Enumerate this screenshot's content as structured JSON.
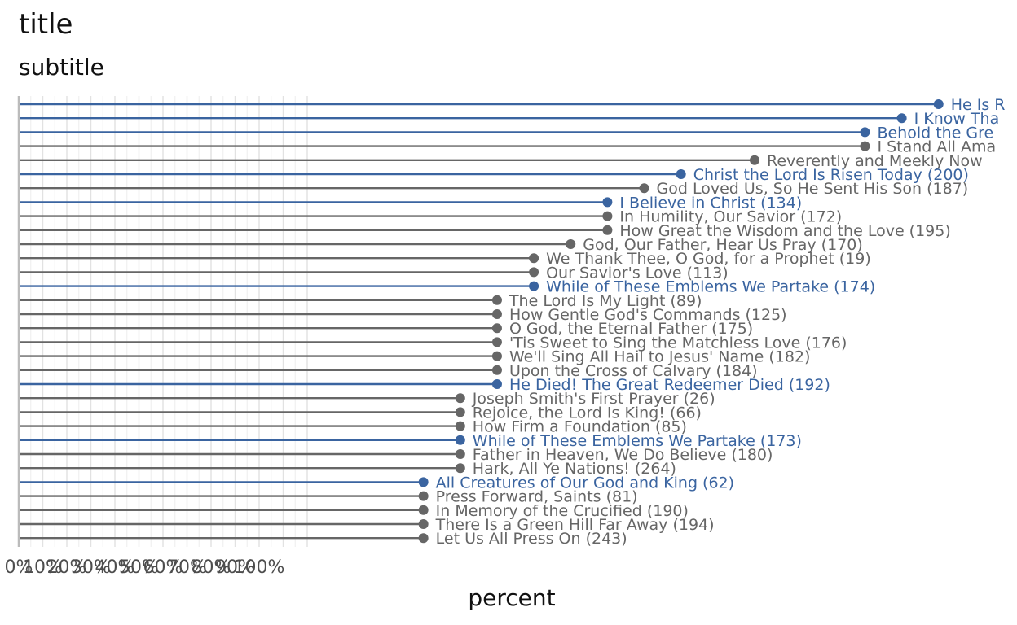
{
  "title": "title",
  "subtitle": "subtitle",
  "chart_data": {
    "type": "lollipop",
    "xlabel": "percent",
    "ylabel": "",
    "xlim": [
      0,
      100
    ],
    "x_tick_labels": [
      "0%",
      "10%",
      "20%",
      "30%",
      "40%",
      "50%",
      "60%",
      "70%",
      "80%",
      "90%",
      "100%"
    ],
    "colors": {
      "highlight": "#3a64a0",
      "default": "#666666"
    },
    "rows": [
      {
        "label": "He Is R",
        "value": 75,
        "highlight": true
      },
      {
        "label": "I Know Tha",
        "value": 72,
        "highlight": true
      },
      {
        "label": "Behold the Gre",
        "value": 69,
        "highlight": true
      },
      {
        "label": "I Stand All Ama",
        "value": 69,
        "highlight": false
      },
      {
        "label": "Reverently and Meekly Now",
        "value": 60,
        "highlight": false
      },
      {
        "label": "Christ the Lord Is Risen Today (200)",
        "value": 54,
        "highlight": true
      },
      {
        "label": "God Loved Us, So He Sent His Son (187)",
        "value": 51,
        "highlight": false
      },
      {
        "label": "I Believe in Christ (134)",
        "value": 48,
        "highlight": true
      },
      {
        "label": "In Humility, Our Savior (172)",
        "value": 48,
        "highlight": false
      },
      {
        "label": "How Great the Wisdom and the Love (195)",
        "value": 48,
        "highlight": false
      },
      {
        "label": "God, Our Father, Hear Us Pray (170)",
        "value": 45,
        "highlight": false
      },
      {
        "label": "We Thank Thee, O God, for a Prophet (19)",
        "value": 42,
        "highlight": false
      },
      {
        "label": "Our Savior's Love (113)",
        "value": 42,
        "highlight": false
      },
      {
        "label": "While of These Emblems We Partake (174)",
        "value": 42,
        "highlight": true
      },
      {
        "label": "The Lord Is My Light (89)",
        "value": 39,
        "highlight": false
      },
      {
        "label": "How Gentle God's Commands (125)",
        "value": 39,
        "highlight": false
      },
      {
        "label": "O God, the Eternal Father (175)",
        "value": 39,
        "highlight": false
      },
      {
        "label": "'Tis Sweet to Sing the Matchless Love (176)",
        "value": 39,
        "highlight": false
      },
      {
        "label": "We'll Sing All Hail to Jesus' Name (182)",
        "value": 39,
        "highlight": false
      },
      {
        "label": "Upon the Cross of Calvary (184)",
        "value": 39,
        "highlight": false
      },
      {
        "label": "He Died! The Great Redeemer Died (192)",
        "value": 39,
        "highlight": true
      },
      {
        "label": "Joseph Smith's First Prayer (26)",
        "value": 36,
        "highlight": false
      },
      {
        "label": "Rejoice, the Lord Is King! (66)",
        "value": 36,
        "highlight": false
      },
      {
        "label": "How Firm a Foundation (85)",
        "value": 36,
        "highlight": false
      },
      {
        "label": "While of These Emblems We Partake (173)",
        "value": 36,
        "highlight": true
      },
      {
        "label": "Father in Heaven, We Do Believe (180)",
        "value": 36,
        "highlight": false
      },
      {
        "label": "Hark, All Ye Nations! (264)",
        "value": 36,
        "highlight": false
      },
      {
        "label": "All Creatures of Our God and King (62)",
        "value": 33,
        "highlight": true
      },
      {
        "label": "Press Forward, Saints (81)",
        "value": 33,
        "highlight": false
      },
      {
        "label": "In Memory of the Crucified (190)",
        "value": 33,
        "highlight": false
      },
      {
        "label": "There Is a Green Hill Far Away (194)",
        "value": 33,
        "highlight": false
      },
      {
        "label": "Let Us All Press On (243)",
        "value": 33,
        "highlight": false
      }
    ]
  }
}
